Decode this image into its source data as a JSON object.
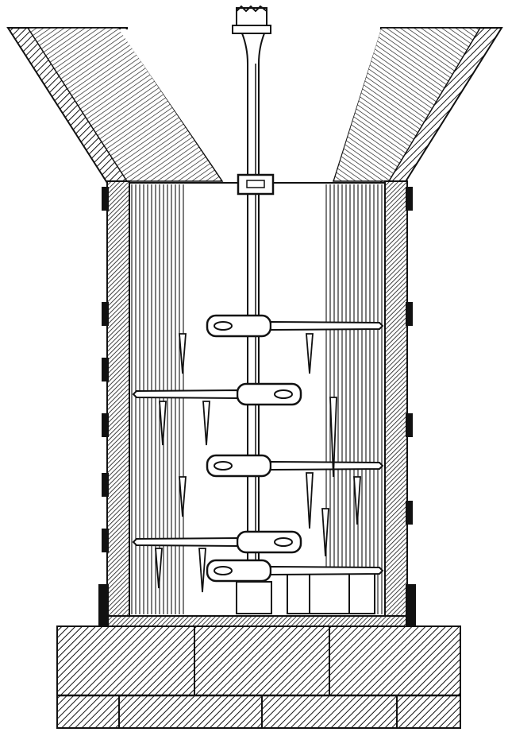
{
  "figure": {
    "ink_color": "#111111",
    "paper_color": "#ffffff",
    "arms": [
      {
        "side": "right"
      },
      {
        "side": "left"
      },
      {
        "side": "right"
      },
      {
        "side": "left"
      },
      {
        "side": "right"
      }
    ]
  }
}
